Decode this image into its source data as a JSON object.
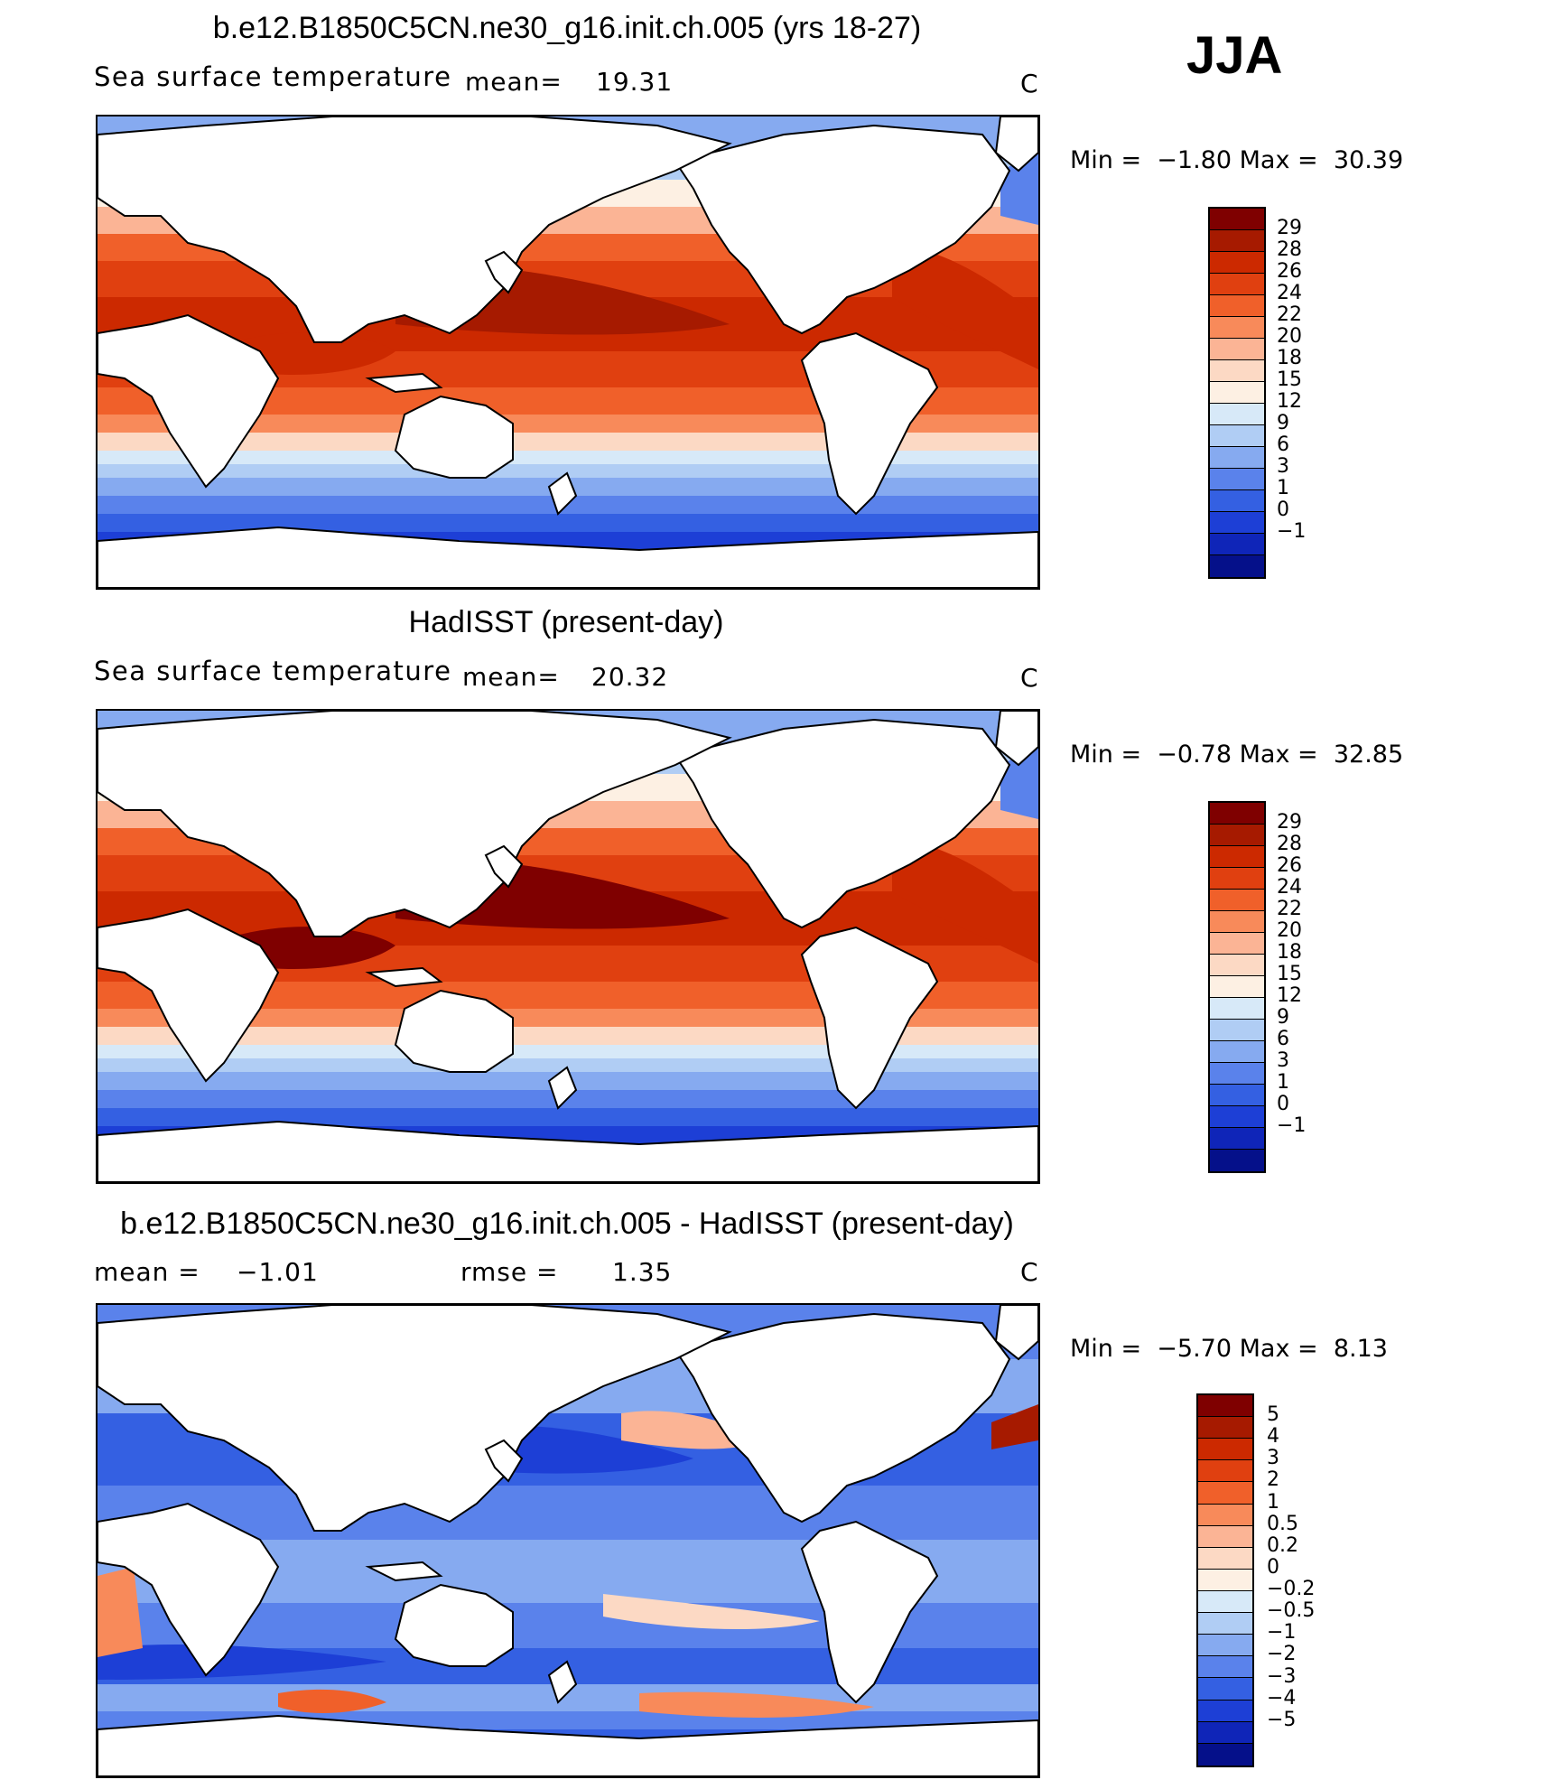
{
  "season": "JJA",
  "panels": [
    {
      "title": "b.e12.B1850C5CN.ne30_g16.init.ch.005 (yrs 18-27)",
      "variable": "Sea surface temperature",
      "stat1_label": "mean=",
      "stat1_value": "19.31",
      "stat2_label": "",
      "stat2_value": "",
      "units": "C",
      "min_label": "Min =",
      "min_value": "−1.80",
      "max_label": "Max =",
      "max_value": "30.39",
      "scale": "abs",
      "colorbar_labels": [
        "29",
        "28",
        "26",
        "24",
        "22",
        "20",
        "18",
        "15",
        "12",
        "9",
        "6",
        "3",
        "1",
        "0",
        "−1"
      ]
    },
    {
      "title": "HadISST (present-day)",
      "variable": "Sea surface temperature",
      "stat1_label": "mean=",
      "stat1_value": "20.32",
      "stat2_label": "",
      "stat2_value": "",
      "units": "C",
      "min_label": "Min =",
      "min_value": "−0.78",
      "max_label": "Max =",
      "max_value": "32.85",
      "scale": "abs",
      "colorbar_labels": [
        "29",
        "28",
        "26",
        "24",
        "22",
        "20",
        "18",
        "15",
        "12",
        "9",
        "6",
        "3",
        "1",
        "0",
        "−1"
      ]
    },
    {
      "title": "b.e12.B1850C5CN.ne30_g16.init.ch.005 - HadISST (present-day)",
      "variable": "",
      "stat1_label": "mean =",
      "stat1_value": "−1.01",
      "stat2_label": "rmse =",
      "stat2_value": "1.35",
      "units": "C",
      "min_label": "Min =",
      "min_value": "−5.70",
      "max_label": "Max =",
      "max_value": "8.13",
      "scale": "diff",
      "colorbar_labels": [
        "5",
        "4",
        "3",
        "2",
        "1",
        "0.5",
        "0.2",
        "0",
        "−0.2",
        "−0.5",
        "−1",
        "−2",
        "−3",
        "−4",
        "−5"
      ]
    }
  ],
  "colors": {
    "abs_scale": [
      "#7f0000",
      "#a61a00",
      "#cc2900",
      "#e04010",
      "#f0602a",
      "#f88a5a",
      "#fbb495",
      "#fcd9c4",
      "#fdf0e3",
      "#d7e9f8",
      "#b0cdf4",
      "#86aaf0",
      "#5a82eb",
      "#3460e2",
      "#1d3fd6",
      "#0f25b8",
      "#05108a"
    ],
    "diff_scale": [
      "#7f0000",
      "#a61a00",
      "#cc2900",
      "#e04010",
      "#f0602a",
      "#f88a5a",
      "#fbb495",
      "#fcd9c4",
      "#fdf0e3",
      "#d7e9f8",
      "#b0cdf4",
      "#86aaf0",
      "#5a82eb",
      "#3460e2",
      "#1d3fd6",
      "#0f25b8",
      "#05108a"
    ]
  }
}
